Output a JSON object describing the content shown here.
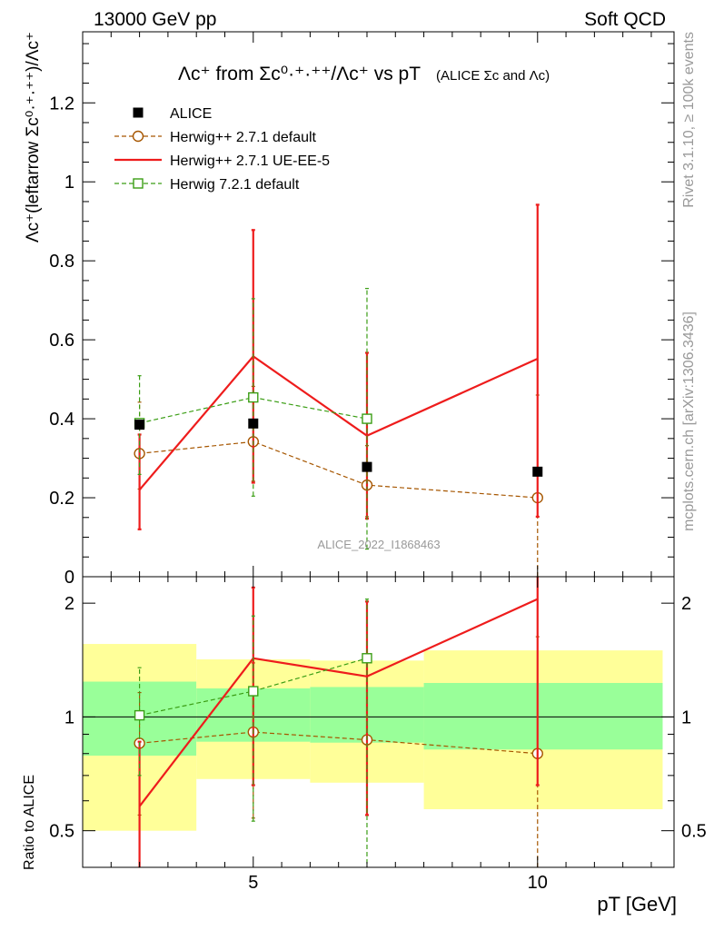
{
  "header": {
    "energy_label": "13000 GeV pp",
    "process_label": "Soft QCD"
  },
  "side_labels": {
    "generator": "Rivet 3.1.10, ≥ 100k events",
    "source": "mcplots.cern.ch [arXiv:1306.3436]"
  },
  "analysis_id": "ALICE_2022_I1868463",
  "chart_data": {
    "type": "line",
    "title_main": "Λc⁺ from Σc⁰·⁺·⁺⁺/Λc⁺ vs pT",
    "title_sub": "(ALICE Σc and Λc)",
    "ylabel": "Λc⁺(leftarrow Σc⁰·⁺·⁺⁺)/Λc⁺",
    "xlabel": "pT [GeV]",
    "ratio_ylabel": "Ratio to ALICE",
    "xlim": [
      2,
      12.4
    ],
    "ylim": [
      0,
      1.38
    ],
    "ratio_ylim": [
      0.4,
      2.35
    ],
    "ratio_log": true,
    "x_ticks": [
      "5",
      "10"
    ],
    "y_ticks": [
      "0",
      "0.2",
      "0.4",
      "0.6",
      "0.8",
      "1",
      "1.2"
    ],
    "ratio_ticks": [
      "0.5",
      "1",
      "2"
    ],
    "legend_position": "top-left",
    "data": {
      "name": "ALICE",
      "x": [
        3,
        5,
        7,
        10
      ],
      "y": [
        0.385,
        0.388,
        0.278,
        0.266
      ],
      "band_edges": [
        [
          2,
          4
        ],
        [
          4,
          6
        ],
        [
          6,
          8
        ],
        [
          8,
          12.2
        ]
      ],
      "ratio_band_inner": [
        [
          0.79,
          1.24
        ],
        [
          0.86,
          1.19
        ],
        [
          0.855,
          1.2
        ],
        [
          0.82,
          1.23
        ]
      ],
      "ratio_band_outer": [
        [
          0.5,
          1.56
        ],
        [
          0.685,
          1.42
        ],
        [
          0.67,
          1.41
        ],
        [
          0.57,
          1.5
        ]
      ]
    },
    "series": [
      {
        "name": "Herwig++ 2.7.1 default",
        "color": "#a65600",
        "style": "dashed",
        "marker": "circle",
        "x": [
          3,
          5,
          7,
          10
        ],
        "y": [
          0.312,
          0.342,
          0.232,
          0.2
        ],
        "yerr_lo": [
          0.09,
          0.1,
          0.08,
          0.2
        ],
        "yerr_hi": [
          0.13,
          0.14,
          0.1,
          0.26
        ],
        "ratio": [
          0.852,
          0.912,
          0.87,
          0.8
        ],
        "ratio_lo": [
          0.55,
          0.54,
          0.55,
          0.35
        ],
        "ratio_hi": [
          1.16,
          1.39,
          1.4,
          1.63
        ]
      },
      {
        "name": "Herwig++ 2.7.1 UE-EE-5",
        "color": "#ee1c1c",
        "style": "solid",
        "marker": "none",
        "x": [
          3,
          5,
          7,
          10
        ],
        "y": [
          0.22,
          0.558,
          0.357,
          0.552
        ],
        "yerr_lo": [
          0.1,
          0.32,
          0.21,
          0.4
        ],
        "yerr_hi": [
          0.14,
          0.32,
          0.21,
          0.39
        ],
        "ratio": [
          0.58,
          1.43,
          1.28,
          2.05
        ],
        "ratio_lo": [
          0.33,
          0.66,
          0.55,
          0.66
        ],
        "ratio_hi": [
          0.86,
          2.2,
          2.02,
          3.6
        ]
      },
      {
        "name": "Herwig 7.2.1 default",
        "color": "#3b9e15",
        "style": "dashed",
        "marker": "square",
        "x": [
          3,
          5,
          7
        ],
        "y": [
          0.389,
          0.454,
          0.4
        ],
        "yerr_lo": [
          0.13,
          0.25,
          0.33
        ],
        "yerr_hi": [
          0.12,
          0.25,
          0.33
        ],
        "ratio": [
          1.01,
          1.17,
          1.43
        ],
        "ratio_lo": [
          0.7,
          0.53,
          0.3
        ],
        "ratio_hi": [
          1.35,
          1.85,
          2.05
        ]
      }
    ]
  }
}
